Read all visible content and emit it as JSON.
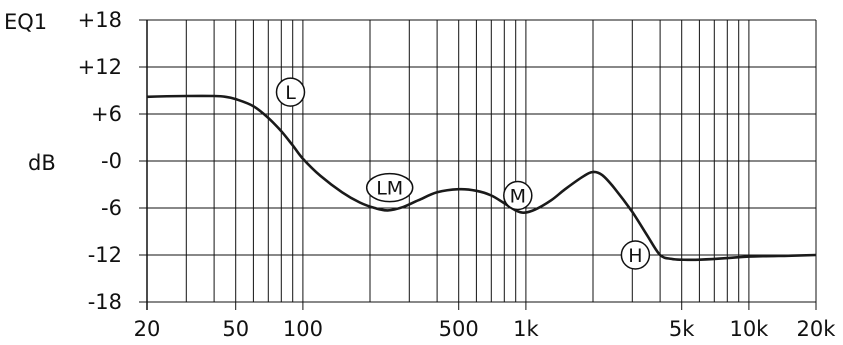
{
  "chart_data": {
    "type": "line",
    "title": "EQ1",
    "ylabel": "dB",
    "xlabel": "",
    "x_scale": "log",
    "xlim": [
      20,
      20000
    ],
    "ylim": [
      -18,
      18
    ],
    "grid": true,
    "y_ticks": [
      {
        "value": 18,
        "label": "+18"
      },
      {
        "value": 12,
        "label": "+12"
      },
      {
        "value": 6,
        "label": "+6"
      },
      {
        "value": 0,
        "label": "-0"
      },
      {
        "value": -6,
        "label": "-6"
      },
      {
        "value": -12,
        "label": "-12"
      },
      {
        "value": -18,
        "label": "-18"
      }
    ],
    "x_ticks": [
      {
        "value": 20,
        "label": "20"
      },
      {
        "value": 50,
        "label": "50"
      },
      {
        "value": 100,
        "label": "100"
      },
      {
        "value": 500,
        "label": "500"
      },
      {
        "value": 1000,
        "label": "1k"
      },
      {
        "value": 5000,
        "label": "5k"
      },
      {
        "value": 10000,
        "label": "10k"
      },
      {
        "value": 20000,
        "label": "20k"
      }
    ],
    "x_grid": [
      20,
      30,
      40,
      50,
      60,
      70,
      80,
      90,
      100,
      200,
      300,
      400,
      500,
      600,
      700,
      800,
      900,
      1000,
      2000,
      3000,
      4000,
      5000,
      6000,
      7000,
      8000,
      9000,
      10000,
      20000
    ],
    "series": [
      {
        "color": "#1a1a1a",
        "x": [
          20,
          30,
          40,
          45,
          50,
          60,
          70,
          80,
          90,
          100,
          120,
          150,
          180,
          210,
          240,
          280,
          330,
          400,
          500,
          600,
          700,
          800,
          900,
          980,
          1100,
          1300,
          1500,
          1800,
          2000,
          2200,
          2500,
          3000,
          3500,
          4000,
          4500,
          5000,
          6000,
          8000,
          10000,
          15000,
          20000
        ],
        "y": [
          8.2,
          8.3,
          8.3,
          8.2,
          7.9,
          7.0,
          5.5,
          3.8,
          2.0,
          0.3,
          -1.9,
          -4.0,
          -5.3,
          -6.0,
          -6.3,
          -5.9,
          -5.0,
          -4.0,
          -3.6,
          -3.8,
          -4.4,
          -5.4,
          -6.3,
          -6.6,
          -6.2,
          -5.0,
          -3.6,
          -2.0,
          -1.4,
          -1.8,
          -3.5,
          -6.5,
          -9.5,
          -12.0,
          -12.5,
          -12.6,
          -12.6,
          -12.4,
          -12.2,
          -12.1,
          -12.0
        ]
      }
    ],
    "annotations": [
      {
        "label": "L",
        "x": 88,
        "y": 8.8
      },
      {
        "label": "LM",
        "x": 245,
        "y": -3.4
      },
      {
        "label": "M",
        "x": 920,
        "y": -4.4
      },
      {
        "label": "H",
        "x": 3100,
        "y": -12.0
      }
    ]
  }
}
